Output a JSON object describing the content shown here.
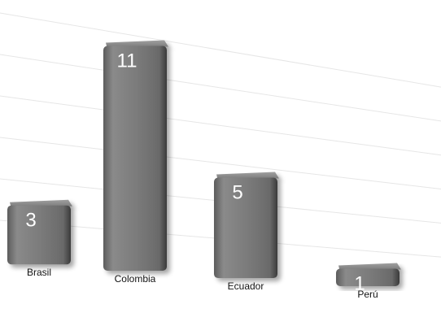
{
  "chart_data": {
    "type": "bar",
    "categories": [
      "Brasil",
      "Colombia",
      "Ecuador",
      "Perú"
    ],
    "values": [
      3,
      11,
      5,
      1
    ],
    "title": "",
    "xlabel": "",
    "ylabel": "",
    "ylim": [
      0,
      12
    ],
    "grid": true,
    "legend": "none",
    "bar_color": "#7a7a7a",
    "grid_color": "#e6e6e6",
    "data_label_color": "#ffffff"
  }
}
